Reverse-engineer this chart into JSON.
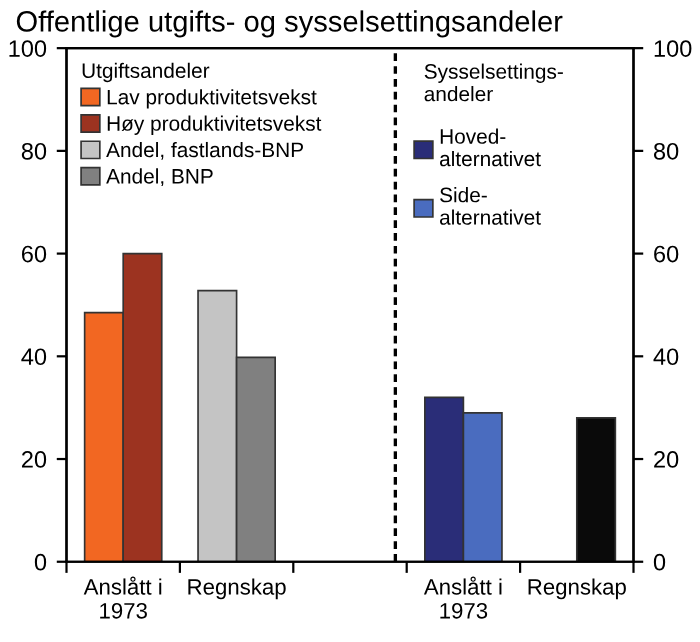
{
  "chart_data": {
    "type": "bar",
    "title": "Offentlige utgifts- og sysselsettingsandeler",
    "categories": [
      "Anslått i\n1973",
      "Regnskap",
      null,
      "Anslått i\n1973",
      "Regnskap"
    ],
    "series": [
      {
        "name": "Lav produktivitetsvekst",
        "color": "#f26722",
        "values": [
          48.5,
          null,
          null,
          null,
          null
        ]
      },
      {
        "name": "Høy produktivitetsvekst",
        "color": "#9c3320",
        "values": [
          60,
          null,
          null,
          null,
          null
        ]
      },
      {
        "name": "Andel, fastlands-BNP",
        "color": "#c4c4c4",
        "values": [
          null,
          52.8,
          null,
          null,
          null
        ]
      },
      {
        "name": "Andel, BNP",
        "color": "#808080",
        "values": [
          null,
          39.8,
          null,
          null,
          null
        ]
      },
      {
        "name": "Hoved-\nalternativet",
        "color": "#2a2d78",
        "values": [
          null,
          null,
          null,
          32,
          null
        ]
      },
      {
        "name": "Side-\nalternativet",
        "color": "#4a6cbf",
        "values": [
          null,
          null,
          null,
          29,
          null
        ]
      },
      {
        "color": "#0a0a0a",
        "values": [
          null,
          null,
          null,
          null,
          28
        ]
      }
    ],
    "ylim": [
      0,
      100
    ],
    "yticks": [
      0,
      20,
      40,
      60,
      80,
      100
    ],
    "y2lim": [
      0,
      100
    ],
    "y2ticks": [
      0,
      20,
      40,
      60,
      80,
      100
    ],
    "legend_title": "Utgiftsandeler",
    "annotations": [
      "Sysselsettings-\nandeler"
    ],
    "legend": "top left",
    "grid": false
  }
}
